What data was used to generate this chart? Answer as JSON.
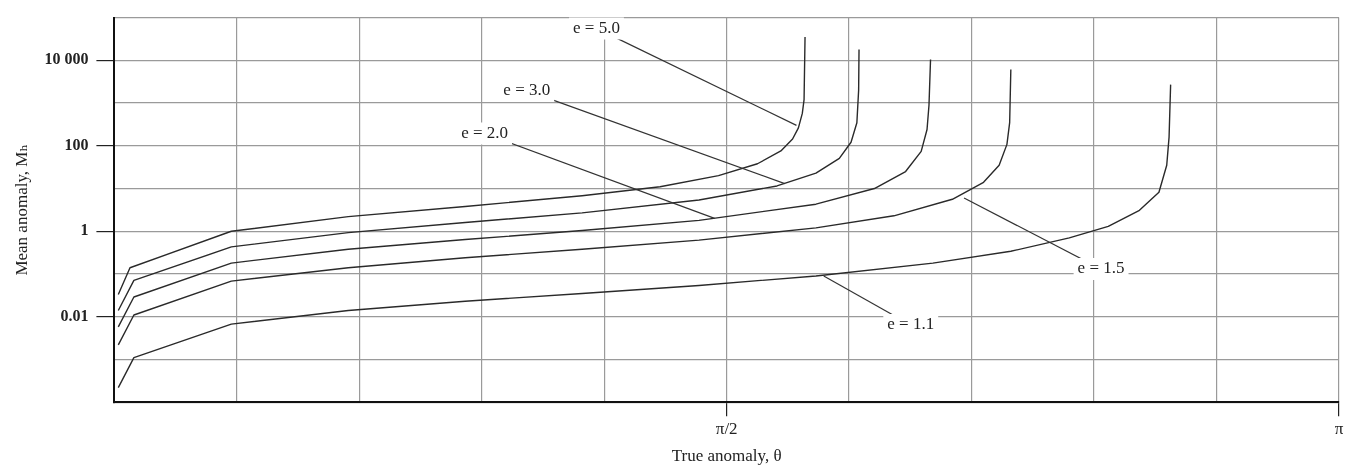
{
  "chart_data": {
    "type": "line",
    "xlabel": "True anomaly, θ",
    "ylabel": "Mean anomaly, Mₕ",
    "log": "y",
    "grid": true,
    "xlim": [
      0,
      3.142
    ],
    "xticks": [
      {
        "value": 0.314,
        "label": null
      },
      {
        "value": 0.628,
        "label": null
      },
      {
        "value": 0.942,
        "label": null
      },
      {
        "value": 1.257,
        "label": null
      },
      {
        "value": 1.571,
        "label": "π/2"
      },
      {
        "value": 1.885,
        "label": null
      },
      {
        "value": 2.199,
        "label": null
      },
      {
        "value": 2.513,
        "label": null
      },
      {
        "value": 2.827,
        "label": null
      },
      {
        "value": 3.142,
        "label": "π"
      }
    ],
    "ylim": [
      0.0001,
      100000
    ],
    "yticks": [
      {
        "value": 0.0001,
        "label": null
      },
      {
        "value": 0.001,
        "label": null
      },
      0.01,
      {
        "value": 0.1,
        "label": null
      },
      1,
      {
        "value": 10,
        "label": null
      },
      100,
      {
        "value": 1000,
        "label": null
      },
      {
        "value": 10000,
        "label": "10 000"
      },
      {
        "value": 100000,
        "label": null
      }
    ],
    "series": [
      {
        "color": "#2a2a2a",
        "x": [
          0.01,
          0.04,
          0.3,
          0.6,
          0.9,
          1.2,
          1.4,
          1.55,
          1.65,
          1.71,
          1.74,
          1.755,
          1.765,
          1.7695,
          1.772
        ],
        "values": [
          0.033,
          0.14,
          1.0,
          2.2,
          3.8,
          6.8,
          11,
          20,
          38,
          76,
          144,
          263,
          573,
          1200,
          35000
        ]
      },
      {
        "color": "#2a2a2a",
        "x": [
          0.01,
          0.05,
          0.3,
          0.6,
          0.9,
          1.2,
          1.5,
          1.7,
          1.8,
          1.86,
          1.89,
          1.905,
          1.9095,
          1.9105
        ],
        "values": [
          0.014,
          0.071,
          0.43,
          0.93,
          1.6,
          2.7,
          5.4,
          11.5,
          23,
          51,
          121,
          346,
          2000,
          18000
        ]
      },
      {
        "color": "#2a2a2a",
        "x": [
          0.01,
          0.05,
          0.3,
          0.6,
          0.9,
          1.2,
          1.5,
          1.8,
          1.95,
          2.03,
          2.07,
          2.085,
          2.09,
          2.094
        ],
        "values": [
          0.0058,
          0.029,
          0.18,
          0.38,
          0.64,
          1.04,
          1.8,
          4.3,
          10,
          25,
          74,
          240,
          890,
          10500
        ]
      },
      {
        "color": "#2a2a2a",
        "x": [
          0.01,
          0.05,
          0.3,
          0.6,
          0.9,
          1.2,
          1.5,
          1.8,
          2.0,
          2.15,
          2.23,
          2.27,
          2.29,
          2.297,
          2.3
        ],
        "values": [
          0.0022,
          0.011,
          0.068,
          0.14,
          0.24,
          0.38,
          0.62,
          1.2,
          2.3,
          5.6,
          14,
          35,
          108,
          350,
          6100
        ]
      },
      {
        "color": "#2a2a2a",
        "x": [
          0.01,
          0.05,
          0.3,
          0.6,
          0.9,
          1.2,
          1.5,
          1.8,
          2.1,
          2.3,
          2.45,
          2.55,
          2.63,
          2.68,
          2.7,
          2.706,
          2.71
        ],
        "values": [
          0.00022,
          0.0011,
          0.0067,
          0.014,
          0.023,
          0.035,
          0.054,
          0.09,
          0.18,
          0.34,
          0.7,
          1.3,
          3.1,
          8.2,
          35,
          160,
          2700
        ]
      }
    ],
    "annotations": [
      {
        "text": "e = 5.0",
        "x": 1.75,
        "y": 300
      },
      {
        "text": "e = 3.0",
        "x": 1.72,
        "y": 13
      },
      {
        "text": "e = 2.0",
        "x": 1.54,
        "y": 2
      },
      {
        "text": "e = 1.5",
        "x": 2.18,
        "y": 6
      },
      {
        "text": "e = 1.1",
        "x": 1.82,
        "y": 0.09
      }
    ]
  }
}
